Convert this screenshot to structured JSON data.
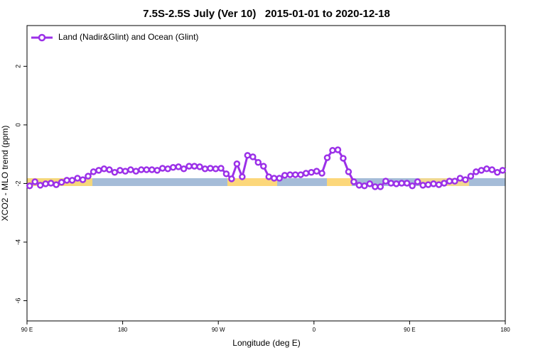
{
  "chart_data": {
    "type": "line",
    "title": "7.5S-2.5S July (Ver 10)   2015-01-01 to 2020-12-18",
    "xlabel": "Longitude (deg E)",
    "ylabel": "XCO2 - MLO trend (ppm)",
    "xlim": [
      90,
      540
    ],
    "ylim": [
      -6.69,
      3.39
    ],
    "xticks": [
      {
        "value": 90,
        "label": "90 E"
      },
      180,
      {
        "value": 270,
        "label": "90 W"
      },
      {
        "value": 360,
        "label": "0"
      },
      {
        "value": 450,
        "label": "90 E"
      },
      {
        "value": 540,
        "label": "180"
      }
    ],
    "yticks": [
      -6,
      -4,
      -2,
      0,
      2
    ],
    "legend": "top-left",
    "x": [
      92.5,
      97.5,
      102.5,
      107.5,
      112.5,
      117.5,
      122.5,
      127.5,
      132.5,
      137.5,
      142.5,
      147.5,
      152.5,
      157.5,
      162.5,
      167.5,
      172.5,
      177.5,
      182.5,
      187.5,
      192.5,
      197.5,
      202.5,
      207.5,
      212.5,
      217.5,
      222.5,
      227.5,
      232.5,
      237.5,
      242.5,
      247.5,
      252.5,
      257.5,
      262.5,
      267.5,
      272.5,
      277.5,
      282.5,
      287.5,
      292.5,
      297.5,
      302.5,
      307.5,
      312.5,
      317.5,
      322.5,
      327.5,
      332.5,
      337.5,
      342.5,
      347.5,
      352.5,
      357.5,
      362.5,
      367.5,
      372.5,
      377.5,
      382.5,
      387.5,
      392.5,
      397.5,
      402.5,
      407.5,
      412.5,
      417.5,
      422.5,
      427.5,
      432.5,
      437.5,
      442.5,
      447.5,
      452.5,
      457.5,
      462.5,
      467.5,
      472.5,
      477.5,
      482.5,
      487.5,
      492.5,
      497.5,
      502.5,
      507.5,
      512.5,
      517.5,
      522.5,
      527.5,
      532.5,
      537.5
    ],
    "series": [
      {
        "name": "Land (Nadir&Glint) and Ocean (Glint)",
        "color": "#9b30e8",
        "values": [
          -2.08,
          -1.94,
          -2.06,
          -2.01,
          -1.99,
          -2.04,
          -1.96,
          -1.89,
          -1.89,
          -1.82,
          -1.87,
          -1.75,
          -1.6,
          -1.55,
          -1.5,
          -1.53,
          -1.62,
          -1.55,
          -1.58,
          -1.53,
          -1.58,
          -1.53,
          -1.53,
          -1.53,
          -1.55,
          -1.48,
          -1.5,
          -1.45,
          -1.43,
          -1.5,
          -1.41,
          -1.41,
          -1.43,
          -1.5,
          -1.48,
          -1.5,
          -1.48,
          -1.67,
          -1.84,
          -1.33,
          -1.77,
          -1.04,
          -1.09,
          -1.28,
          -1.41,
          -1.77,
          -1.82,
          -1.82,
          -1.72,
          -1.7,
          -1.7,
          -1.7,
          -1.65,
          -1.62,
          -1.58,
          -1.65,
          -1.12,
          -0.87,
          -0.85,
          -1.14,
          -1.6,
          -1.94,
          -2.06,
          -2.08,
          -2.01,
          -2.11,
          -2.11,
          -1.92,
          -1.99,
          -2.01,
          -1.99,
          -1.99,
          -2.08,
          -1.94,
          -2.06,
          -2.04,
          -2.01,
          -2.04,
          -1.99,
          -1.92,
          -1.92,
          -1.82,
          -1.87,
          -1.75,
          -1.6,
          -1.55,
          -1.5,
          -1.53,
          -1.62,
          -1.55
        ]
      }
    ]
  }
}
